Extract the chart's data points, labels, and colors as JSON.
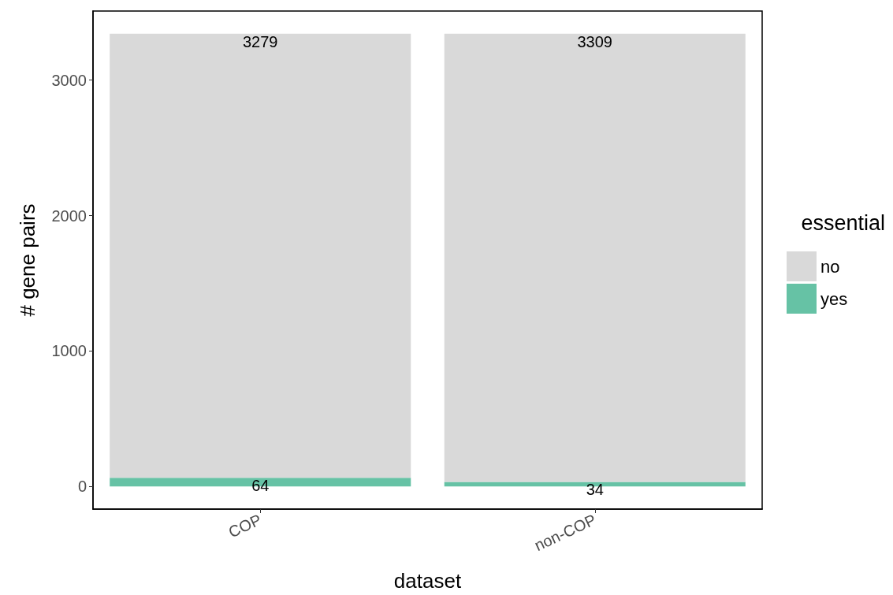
{
  "chart_data": {
    "type": "bar",
    "xlabel": "dataset",
    "ylabel": "# gene pairs",
    "legend_title": "essential",
    "categories": [
      "COP",
      "non-COP"
    ],
    "stacked": true,
    "series": [
      {
        "name": "yes",
        "color": "#66c2a5",
        "values": [
          64,
          34
        ]
      },
      {
        "name": "no",
        "color": "#d9d9d9",
        "values": [
          3279,
          3309
        ]
      }
    ],
    "ylim": [
      -167,
      3510
    ],
    "yticks": [
      0,
      1000,
      2000,
      3000
    ],
    "grid": false,
    "legend": "right",
    "data_labels": true
  }
}
